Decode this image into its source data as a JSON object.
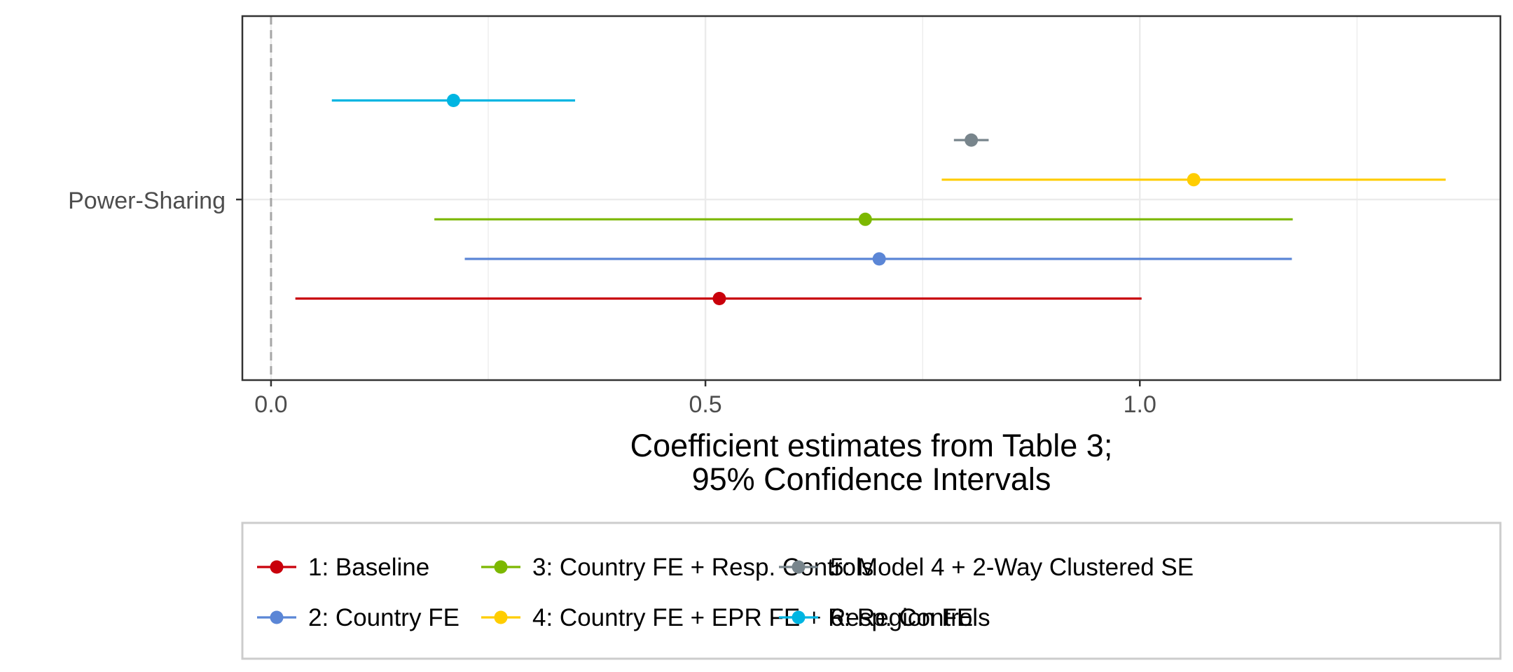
{
  "chart_data": {
    "type": "scatter",
    "orientation": "horizontal",
    "title": "",
    "xlabel_lines": [
      "Coefficient estimates from Table 3;",
      "95% Confidence Intervals"
    ],
    "ylabel": "",
    "y_categories": [
      "Power-Sharing"
    ],
    "xlim": [
      -0.033,
      1.415
    ],
    "x_ticks": [
      0.0,
      0.5,
      1.0
    ],
    "x_tick_labels": [
      "0.0",
      "0.5",
      "1.0"
    ],
    "reference_line": {
      "x": 0,
      "style": "dashed",
      "color": "#a6a6a6"
    },
    "grid": true,
    "legend_position": "bottom",
    "series": [
      {
        "name": "1: Baseline",
        "estimate": 0.516,
        "ci_low": 0.028,
        "ci_high": 1.002,
        "color": "#c9000b"
      },
      {
        "name": "2: Country FE",
        "estimate": 0.7,
        "ci_low": 0.223,
        "ci_high": 1.175,
        "color": "#5b86d6"
      },
      {
        "name": "3: Country FE + Resp. Controls",
        "estimate": 0.684,
        "ci_low": 0.188,
        "ci_high": 1.176,
        "color": "#7cb800"
      },
      {
        "name": "4: Country FE + EPR FE + Resp. Controls",
        "estimate": 1.062,
        "ci_low": 0.772,
        "ci_high": 1.352,
        "color": "#ffcd00"
      },
      {
        "name": "5: Model 4 + 2-Way Clustered SE",
        "estimate": 0.806,
        "ci_low": 0.786,
        "ci_high": 0.826,
        "color": "#78858c"
      },
      {
        "name": "6: Region FE",
        "estimate": 0.21,
        "ci_low": 0.07,
        "ci_high": 0.35,
        "color": "#00b5e2"
      }
    ]
  }
}
